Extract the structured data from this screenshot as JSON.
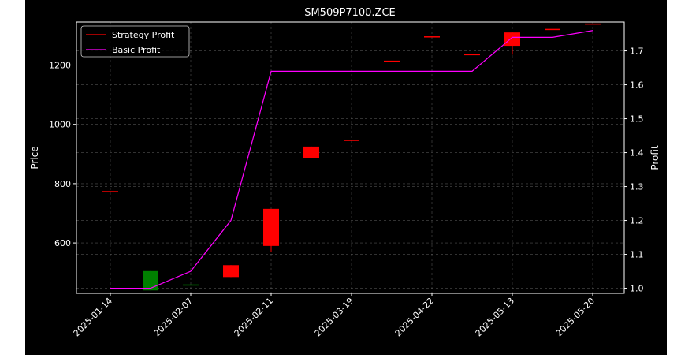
{
  "chart_data": {
    "type": "candlestick",
    "title": "SM509P7100.ZCE",
    "ylabel_left": "Price",
    "ylabel_right": "Profit",
    "xlabel": "",
    "x_tick_labels": [
      "2025-01-14",
      "2025-02-07",
      "2025-02-11",
      "2025-03-19",
      "2025-04-22",
      "2025-05-13",
      "2025-05-20"
    ],
    "x_tick_positions": [
      0,
      2,
      4,
      6,
      8,
      10,
      12
    ],
    "y_left_ticks": [
      600,
      800,
      1000,
      1200
    ],
    "y_left_range": [
      430,
      1345
    ],
    "y_right_ticks": [
      1.0,
      1.1,
      1.2,
      1.3,
      1.4,
      1.5,
      1.6,
      1.7
    ],
    "y_right_range": [
      0.985,
      1.785
    ],
    "grid": true,
    "legend_position": "top-left",
    "legend": [
      {
        "label": "Strategy Profit",
        "color": "#ff0000"
      },
      {
        "label": "Basic Profit",
        "color": "#ff00ff"
      }
    ],
    "candles": [
      {
        "x": 0,
        "open": 775,
        "high": 775,
        "low": 775,
        "close": 775,
        "color": "red"
      },
      {
        "x": 1,
        "open": 440,
        "high": 505,
        "low": 440,
        "close": 505,
        "color": "green"
      },
      {
        "x": 2,
        "open": 460,
        "high": 460,
        "low": 460,
        "close": 460,
        "color": "green"
      },
      {
        "x": 3,
        "open": 485,
        "high": 525,
        "low": 485,
        "close": 525,
        "color": "red"
      },
      {
        "x": 4,
        "open": 590,
        "high": 715,
        "low": 570,
        "close": 715,
        "color": "red"
      },
      {
        "x": 5,
        "open": 885,
        "high": 925,
        "low": 885,
        "close": 925,
        "color": "red"
      },
      {
        "x": 6,
        "open": 948,
        "high": 948,
        "low": 948,
        "close": 948,
        "color": "red"
      },
      {
        "x": 7,
        "open": 1215,
        "high": 1215,
        "low": 1215,
        "close": 1215,
        "color": "red"
      },
      {
        "x": 8,
        "open": 1297,
        "high": 1297,
        "low": 1297,
        "close": 1297,
        "color": "red"
      },
      {
        "x": 9,
        "open": 1237,
        "high": 1237,
        "low": 1237,
        "close": 1237,
        "color": "red"
      },
      {
        "x": 10,
        "open": 1265,
        "high": 1310,
        "low": 1235,
        "close": 1310,
        "color": "red"
      },
      {
        "x": 11,
        "open": 1322,
        "high": 1322,
        "low": 1322,
        "close": 1322,
        "color": "red"
      },
      {
        "x": 12,
        "open": 1340,
        "high": 1340,
        "low": 1340,
        "close": 1340,
        "color": "red"
      }
    ],
    "series": [
      {
        "name": "Strategy Profit",
        "color": "#ff0000",
        "x": [],
        "values": []
      },
      {
        "name": "Basic Profit",
        "color": "#ff00ff",
        "x": [
          0,
          1,
          2,
          3,
          4,
          5,
          6,
          7,
          8,
          9,
          10,
          11,
          12
        ],
        "values": [
          1.0,
          1.0,
          1.05,
          1.2,
          1.64,
          1.64,
          1.64,
          1.64,
          1.64,
          1.64,
          1.74,
          1.74,
          1.76
        ]
      }
    ]
  }
}
